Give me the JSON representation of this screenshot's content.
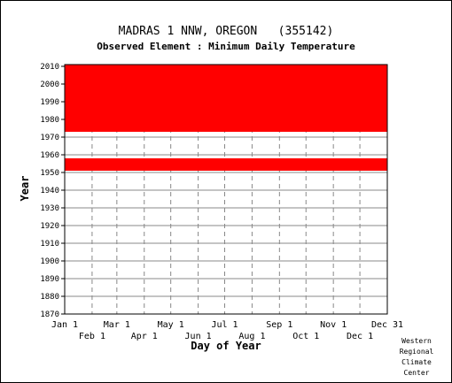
{
  "chart_data": {
    "type": "bar",
    "title": "MADRAS 1 NNW, OREGON   (355142)",
    "subtitle": "Observed Element : Minimum Daily Temperature",
    "xlabel": "Day of Year",
    "ylabel": "Year",
    "xlim": [
      1,
      366
    ],
    "ylim": [
      1870,
      2011
    ],
    "y_ticks": [
      1870,
      1880,
      1890,
      1900,
      1910,
      1920,
      1930,
      1940,
      1950,
      1960,
      1970,
      1980,
      1990,
      2000,
      2010
    ],
    "x_ticks_top_row": [
      {
        "label": "Jan 1",
        "day": 1
      },
      {
        "label": "Mar 1",
        "day": 60
      },
      {
        "label": "May 1",
        "day": 121
      },
      {
        "label": "Jul 1",
        "day": 182
      },
      {
        "label": "Sep 1",
        "day": 244
      },
      {
        "label": "Nov 1",
        "day": 305
      },
      {
        "label": "Dec 31",
        "day": 366
      }
    ],
    "x_ticks_bottom_row": [
      {
        "label": "Feb 1",
        "day": 32
      },
      {
        "label": "Apr 1",
        "day": 91
      },
      {
        "label": "Jun 1",
        "day": 152
      },
      {
        "label": "Aug 1",
        "day": 213
      },
      {
        "label": "Oct 1",
        "day": 274
      },
      {
        "label": "Dec 1",
        "day": 335
      }
    ],
    "grid": true,
    "series": [
      {
        "color": "#ff0000",
        "coverage_blocks": [
          {
            "year_start": 1951,
            "year_end": 1958,
            "day_start": 1,
            "day_end": 366
          },
          {
            "year_start": 1973,
            "year_end": 2011,
            "day_start": 1,
            "day_end": 366
          }
        ]
      }
    ]
  },
  "credit": [
    "Western",
    "Regional",
    "Climate",
    "Center"
  ]
}
